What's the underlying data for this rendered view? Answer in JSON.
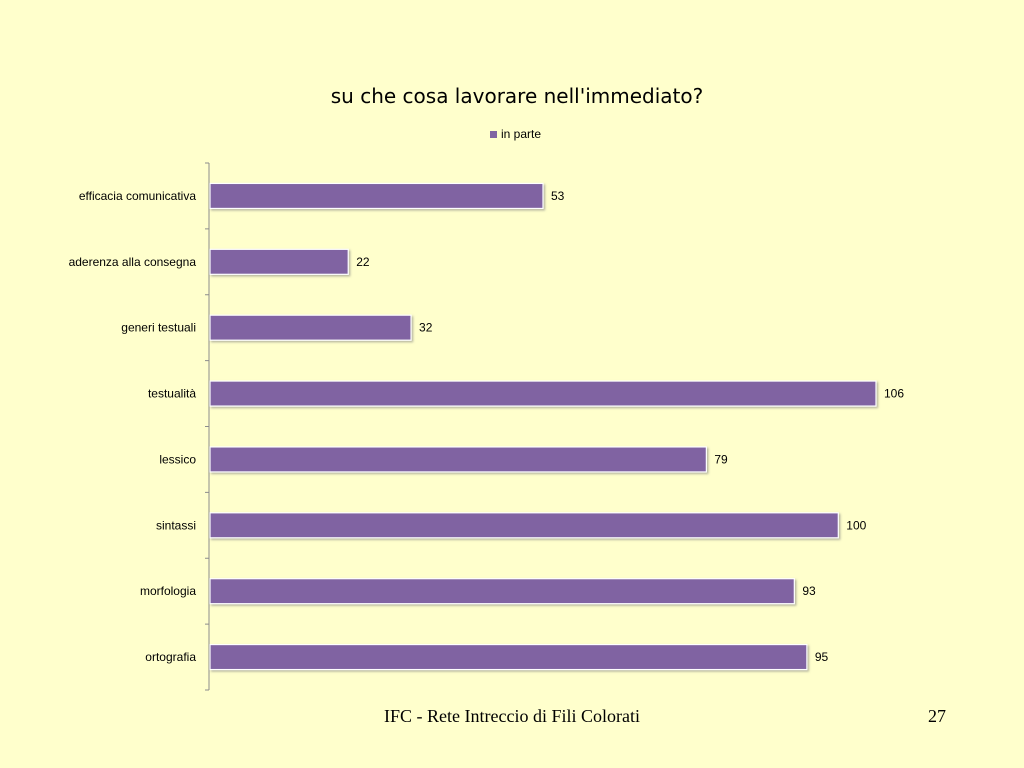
{
  "slide": {
    "footer": "IFC - Rete Intreccio di Fili Colorati",
    "page_number": "27",
    "background_color": "#FFFFCC"
  },
  "chart_data": {
    "type": "bar",
    "orientation": "horizontal",
    "title": "su che cosa lavorare nell'immediato?",
    "categories": [
      "efficacia comunicativa",
      "aderenza alla consegna",
      "generi testuali",
      "testualità",
      "lessico",
      "sintassi",
      "morfologia",
      "ortografia"
    ],
    "series": [
      {
        "name": "in parte",
        "values": [
          53,
          22,
          32,
          106,
          79,
          100,
          93,
          95
        ],
        "color": "#8064A2"
      }
    ],
    "data_labels": true,
    "legend_position": "top",
    "grid": false,
    "xlim": [
      0,
      110
    ]
  }
}
